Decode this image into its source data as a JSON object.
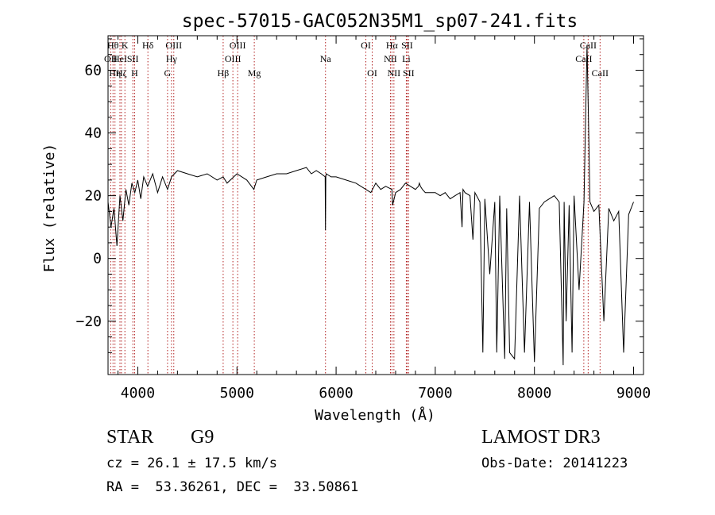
{
  "chart_data": {
    "type": "line",
    "title": "spec-57015-GAC052N35M1_sp07-241.fits",
    "xlabel": "Wavelength (Å)",
    "ylabel": "Flux (relative)",
    "xlim": [
      3700,
      9100
    ],
    "ylim": [
      -37,
      71
    ],
    "x_ticks": [
      {
        "value": 4000,
        "label": "4000"
      },
      {
        "value": 5000,
        "label": "5000"
      },
      {
        "value": 6000,
        "label": "6000"
      },
      {
        "value": 7000,
        "label": "7000"
      },
      {
        "value": 8000,
        "label": "8000"
      },
      {
        "value": 9000,
        "label": "9000"
      }
    ],
    "y_ticks": [
      {
        "value": -20,
        "label": "−20"
      },
      {
        "value": 0,
        "label": "0"
      },
      {
        "value": 20,
        "label": "20"
      },
      {
        "value": 40,
        "label": "40"
      },
      {
        "value": 60,
        "label": "60"
      }
    ],
    "series": [
      {
        "name": "flux",
        "x": [
          3700,
          3730,
          3760,
          3790,
          3820,
          3850,
          3880,
          3910,
          3940,
          3970,
          4000,
          4030,
          4060,
          4100,
          4150,
          4200,
          4250,
          4300,
          4340,
          4400,
          4500,
          4600,
          4700,
          4800,
          4861,
          4900,
          5000,
          5100,
          5170,
          5200,
          5300,
          5400,
          5500,
          5600,
          5700,
          5750,
          5800,
          5850,
          5890,
          5893,
          5896,
          5900,
          5950,
          6000,
          6100,
          6200,
          6300,
          6350,
          6400,
          6450,
          6500,
          6563,
          6570,
          6600,
          6650,
          6700,
          6750,
          6800,
          6830,
          6840,
          6850,
          6870,
          6900,
          6950,
          7000,
          7050,
          7100,
          7150,
          7200,
          7250,
          7270,
          7280,
          7300,
          7350,
          7380,
          7400,
          7450,
          7480,
          7500,
          7550,
          7600,
          7620,
          7650,
          7700,
          7720,
          7750,
          7800,
          7850,
          7900,
          7950,
          8000,
          8050,
          8100,
          8150,
          8200,
          8250,
          8290,
          8300,
          8320,
          8350,
          8380,
          8400,
          8450,
          8500,
          8530,
          8545,
          8560,
          8600,
          8650,
          8700,
          8750,
          8800,
          8850,
          8900,
          8950,
          9000
        ],
        "values": [
          18,
          10,
          16,
          4,
          20,
          12,
          22,
          17,
          24,
          21,
          25,
          19,
          26,
          23,
          27,
          21,
          26,
          22,
          26,
          28,
          27,
          26,
          27,
          25,
          26,
          24,
          27,
          25,
          22,
          25,
          26,
          27,
          27,
          28,
          29,
          27,
          28,
          27,
          26,
          9,
          26,
          27,
          26,
          26,
          25,
          24,
          22,
          21,
          24,
          22,
          23,
          22,
          17,
          21,
          22,
          24,
          23,
          22,
          23,
          24,
          23,
          22,
          21,
          21,
          21,
          20,
          21,
          19,
          20,
          21,
          10,
          22,
          21,
          20,
          6,
          21,
          18,
          -30,
          19,
          -5,
          18,
          -30,
          20,
          -32,
          16,
          -30,
          -32,
          20,
          -30,
          18,
          -33,
          16,
          18,
          19,
          20,
          18,
          -34,
          18,
          -20,
          17,
          -30,
          20,
          -10,
          18,
          68,
          45,
          18,
          15,
          17,
          -20,
          16,
          12,
          15,
          -30,
          14,
          18
        ]
      }
    ],
    "lines": [
      {
        "wavelength": 3727,
        "label": "OII",
        "row": 2
      },
      {
        "wavelength": 3750,
        "label": "Hθ",
        "row": 1
      },
      {
        "wavelength": 3770,
        "label": "Hη",
        "row": 3
      },
      {
        "wavelength": 3820,
        "label": "HeI",
        "row": 2
      },
      {
        "wavelength": 3835,
        "label": "Hζ",
        "row": 3
      },
      {
        "wavelength": 3870,
        "label": "K",
        "row": 1
      },
      {
        "wavelength": 3950,
        "label": "SII",
        "row": 2
      },
      {
        "wavelength": 3968,
        "label": "H",
        "row": 3
      },
      {
        "wavelength": 4102,
        "label": "Hδ",
        "row": 1
      },
      {
        "wavelength": 4300,
        "label": "G",
        "row": 3
      },
      {
        "wavelength": 4340,
        "label": "Hγ",
        "row": 2
      },
      {
        "wavelength": 4363,
        "label": "OIII",
        "row": 1
      },
      {
        "wavelength": 4861,
        "label": "Hβ",
        "row": 3
      },
      {
        "wavelength": 4959,
        "label": "OIII",
        "row": 2
      },
      {
        "wavelength": 5007,
        "label": "OIII",
        "row": 1
      },
      {
        "wavelength": 5175,
        "label": "Mg",
        "row": 3
      },
      {
        "wavelength": 5893,
        "label": "Na",
        "row": 2
      },
      {
        "wavelength": 6300,
        "label": "OI",
        "row": 1
      },
      {
        "wavelength": 6364,
        "label": "OI",
        "row": 3
      },
      {
        "wavelength": 6548,
        "label": "NII",
        "row": 2
      },
      {
        "wavelength": 6563,
        "label": "Hα",
        "row": 1
      },
      {
        "wavelength": 6583,
        "label": "NII",
        "row": 3
      },
      {
        "wavelength": 6708,
        "label": "Li",
        "row": 2
      },
      {
        "wavelength": 6716,
        "label": "SII",
        "row": 1
      },
      {
        "wavelength": 6731,
        "label": "SII",
        "row": 3
      },
      {
        "wavelength": 8498,
        "label": "CaII",
        "row": 2
      },
      {
        "wavelength": 8542,
        "label": "CaII",
        "row": 1
      },
      {
        "wavelength": 8662,
        "label": "CaII",
        "row": 3
      }
    ]
  },
  "info": {
    "class": "STAR",
    "subclass": "G9",
    "survey": "LAMOST DR3",
    "cz": "cz = 26.1 ± 17.5 km/s",
    "obs_date": "Obs-Date: 20141223",
    "coords": "RA =  53.36261, DEC =  33.50861"
  }
}
